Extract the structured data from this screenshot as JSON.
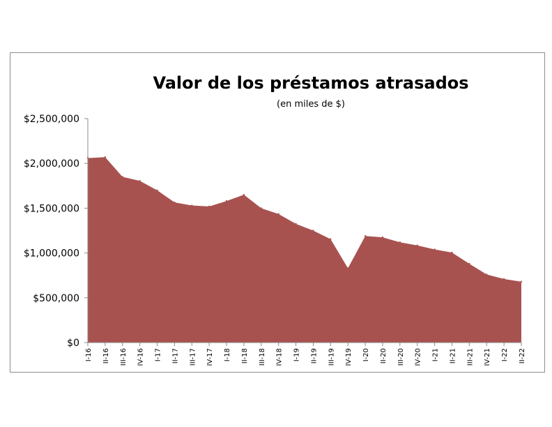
{
  "chart_data": {
    "type": "area",
    "title": "Valor de los préstamos atrasados",
    "subtitle": "(en miles de $)",
    "xlabel": "",
    "ylabel": "",
    "ylim": [
      0,
      2500000
    ],
    "y_ticks": [
      0,
      500000,
      1000000,
      1500000,
      2000000,
      2500000
    ],
    "y_tick_labels": [
      "$0",
      "$500,000",
      "$1,000,000",
      "$1,500,000",
      "$2,000,000",
      "$2,500,000"
    ],
    "grid": false,
    "legend": "none",
    "categories": [
      "I-16",
      "II-16",
      "III-16",
      "IV-16",
      "I-17",
      "II-17",
      "III-17",
      "IV-17",
      "I-18",
      "II-18",
      "III-18",
      "IV-18",
      "I-19",
      "II-19",
      "III-19",
      "IV-19",
      "I-20",
      "II-20",
      "III-20",
      "IV-20",
      "I-21",
      "II-21",
      "III-21",
      "IV-21",
      "I-22",
      "II-22"
    ],
    "values": [
      2060000,
      2070000,
      1850000,
      1805000,
      1700000,
      1565000,
      1530000,
      1520000,
      1580000,
      1650000,
      1500000,
      1435000,
      1325000,
      1250000,
      1155000,
      830000,
      1190000,
      1175000,
      1120000,
      1085000,
      1040000,
      1005000,
      880000,
      760000,
      710000,
      680000
    ],
    "colors": {
      "area": "#a85250",
      "axis": "#8c8c8c"
    }
  }
}
